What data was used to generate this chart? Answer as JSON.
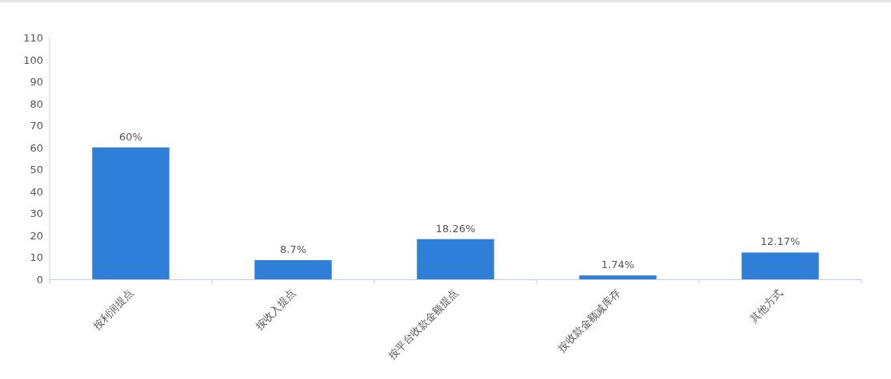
{
  "chart_data": {
    "type": "bar",
    "categories": [
      "按利润提点",
      "按收入提点",
      "按平台收款金额提点",
      "按收款金额减库存",
      "其他方式"
    ],
    "values": [
      60,
      8.7,
      18.26,
      1.74,
      12.17
    ],
    "value_labels": [
      "60%",
      "8.7%",
      "18.26%",
      "1.74%",
      "12.17%"
    ],
    "color": "#2f7ed8",
    "ylim": [
      0,
      110
    ],
    "yticks": [
      0,
      10,
      20,
      30,
      40,
      50,
      60,
      70,
      80,
      90,
      100,
      110
    ]
  }
}
